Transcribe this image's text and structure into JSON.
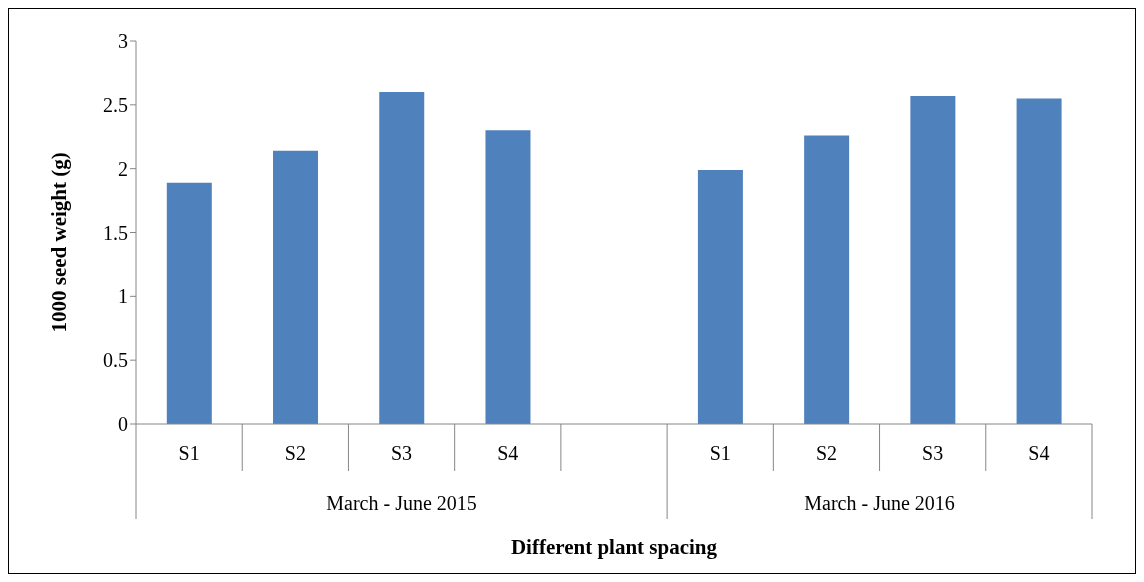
{
  "chart_data": {
    "type": "bar",
    "ylabel": "1000 seed weight (g)",
    "xlabel": "Different plant spacing",
    "categories": [
      "S1",
      "S2",
      "S3",
      "S4",
      null,
      "S1",
      "S2",
      "S3",
      "S4"
    ],
    "values": [
      1.89,
      2.14,
      2.6,
      2.3,
      null,
      1.99,
      2.26,
      2.57,
      2.55
    ],
    "color": "#4f81bd",
    "ylim": [
      0,
      3
    ],
    "yticks": [
      0,
      0.5,
      1,
      1.5,
      2,
      2.5,
      3
    ],
    "grid": false,
    "legend": false,
    "annotations": [
      "March - June 2015",
      "March - June 2016"
    ]
  }
}
